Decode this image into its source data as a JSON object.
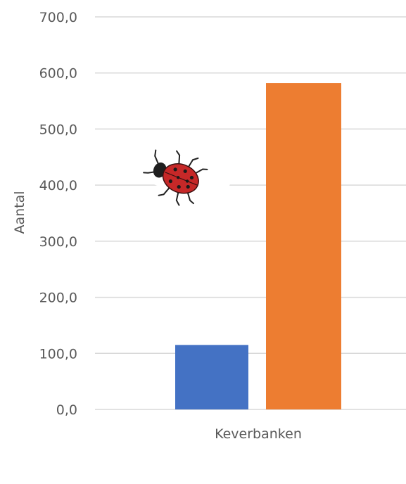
{
  "chart_data": {
    "type": "bar",
    "categories": [
      "Keverbanken"
    ],
    "series": [
      {
        "values": [
          115
        ],
        "color": "#4472c4"
      },
      {
        "values": [
          582
        ],
        "color": "#ed7d31"
      }
    ],
    "title": "",
    "xlabel": "",
    "ylabel": "Aantal",
    "ylim": [
      0,
      700
    ],
    "yticks": [
      {
        "value": 0,
        "label": "0,0"
      },
      {
        "value": 100,
        "label": "100,0"
      },
      {
        "value": 200,
        "label": "200,0"
      },
      {
        "value": 300,
        "label": "300,0"
      },
      {
        "value": 400,
        "label": "400,0"
      },
      {
        "value": 500,
        "label": "500,0"
      },
      {
        "value": 600,
        "label": "600,0"
      },
      {
        "value": 700,
        "label": "700,0"
      }
    ],
    "grid": true,
    "legend": "none",
    "decoration_icon": "ladybug-icon"
  }
}
